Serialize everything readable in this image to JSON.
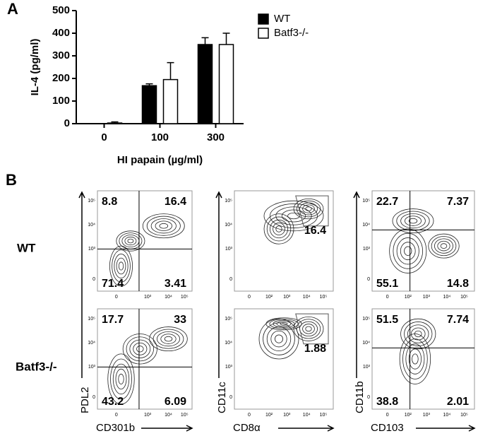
{
  "chart_data": {
    "type": "bar",
    "panel_label": "A",
    "ylabel": "IL-4 (pg/ml)",
    "xlabel": "HI papain (µg/ml)",
    "categories": [
      "0",
      "100",
      "300"
    ],
    "series": [
      {
        "name": "WT",
        "color": "#000000",
        "values": [
          0,
          168,
          350
        ],
        "errors": [
          0,
          8,
          30
        ]
      },
      {
        "name": "Batf3-/-",
        "color": "#ffffff",
        "values": [
          3,
          195,
          350
        ],
        "errors": [
          5,
          75,
          50
        ]
      }
    ],
    "ylim": [
      0,
      500
    ],
    "yticks": [
      0,
      100,
      200,
      300,
      400,
      500
    ],
    "grid": false,
    "legend": "top-right"
  },
  "panel_b": {
    "panel_label": "B",
    "rows": [
      "WT",
      "Batf3-/-"
    ],
    "columns": [
      {
        "x_label": "CD301b",
        "y_label": "PDL2",
        "x_ticks": [
          "0",
          "10³",
          "10⁴",
          "10⁵"
        ],
        "y_ticks": [
          "10⁵",
          "10⁴",
          "10³",
          "0"
        ],
        "plots": [
          {
            "values": [
              8.8,
              16.4,
              71.4,
              3.41
            ]
          },
          {
            "values": [
              17.7,
              33,
              43.2,
              6.09
            ]
          }
        ]
      },
      {
        "x_label": "CD8α",
        "y_label": "CD11c",
        "x_ticks": [
          "0",
          "10²",
          "10³",
          "10⁴",
          "10⁵"
        ],
        "y_ticks": [
          "10⁵",
          "10⁴",
          "10³",
          "0"
        ],
        "plots": [
          {
            "values": [
              16.4
            ]
          },
          {
            "values": [
              1.88
            ]
          }
        ]
      },
      {
        "x_label": "CD103",
        "y_label": "CD11b",
        "x_ticks": [
          "0",
          "10²",
          "10³",
          "10⁴",
          "10⁵"
        ],
        "y_ticks": [
          "10⁵",
          "10⁴",
          "10³",
          "0"
        ],
        "plots": [
          {
            "values": [
              22.7,
              7.37,
              55.1,
              14.8
            ]
          },
          {
            "values": [
              51.5,
              7.74,
              38.8,
              2.01
            ]
          }
        ]
      }
    ]
  }
}
